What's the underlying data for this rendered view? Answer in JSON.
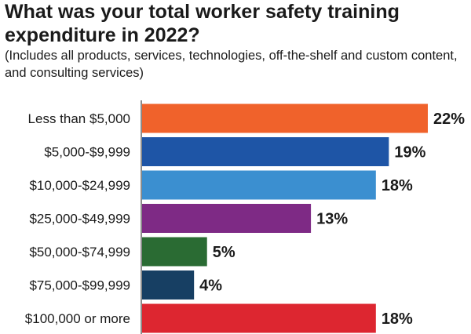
{
  "chart_data": {
    "type": "bar",
    "orientation": "horizontal",
    "title": "What was your total worker safety training expenditure in 2022?",
    "subtitle": "(Includes all products, services, technologies, off-the-shelf and custom content, and consulting services)",
    "categories": [
      "Less than $5,000",
      "$5,000-$9,999",
      "$10,000-$24,999",
      "$25,000-$49,999",
      "$50,000-$74,999",
      "$75,000-$99,999",
      "$100,000 or more"
    ],
    "values": [
      22,
      19,
      18,
      13,
      5,
      4,
      18
    ],
    "value_labels": [
      "22%",
      "19%",
      "18%",
      "13%",
      "5%",
      "4%",
      "18%"
    ],
    "colors": [
      "#f0622b",
      "#1e55a6",
      "#3b8fd0",
      "#7e2a85",
      "#2a6b33",
      "#173f63",
      "#dd2630"
    ],
    "xlim": [
      0,
      22
    ],
    "grid": false,
    "legend": "none",
    "xlabel": "",
    "ylabel": ""
  }
}
